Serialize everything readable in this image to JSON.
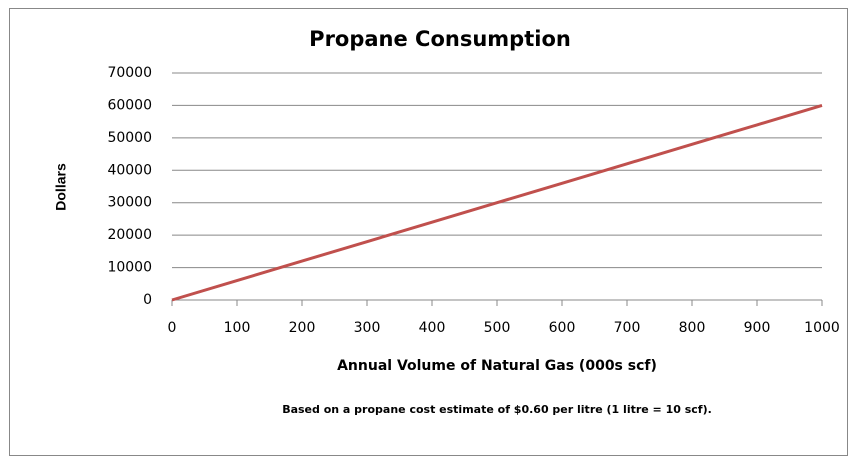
{
  "chart_data": {
    "type": "line",
    "title": "Propane Consumption",
    "x_label": "Annual Volume of Natural Gas (000s scf)",
    "y_label": "Dollars",
    "annotation": "Based on a propane cost estimate of $0.60 per litre (1 litre = 10 scf).",
    "x": [
      0,
      100,
      200,
      300,
      400,
      500,
      600,
      700,
      800,
      900,
      1000
    ],
    "series": [
      {
        "name": "Propane",
        "color": "#c0504d",
        "values": [
          0,
          6000,
          12000,
          18000,
          24000,
          30000,
          36000,
          42000,
          48000,
          54000,
          60000
        ]
      }
    ],
    "xlim": [
      0,
      1000
    ],
    "xticks": [
      0,
      100,
      200,
      300,
      400,
      500,
      600,
      700,
      800,
      900,
      1000
    ],
    "ylim": [
      0,
      70000
    ],
    "yticks": [
      0,
      10000,
      20000,
      30000,
      40000,
      50000,
      60000,
      70000
    ],
    "grid": true,
    "legend": false
  }
}
